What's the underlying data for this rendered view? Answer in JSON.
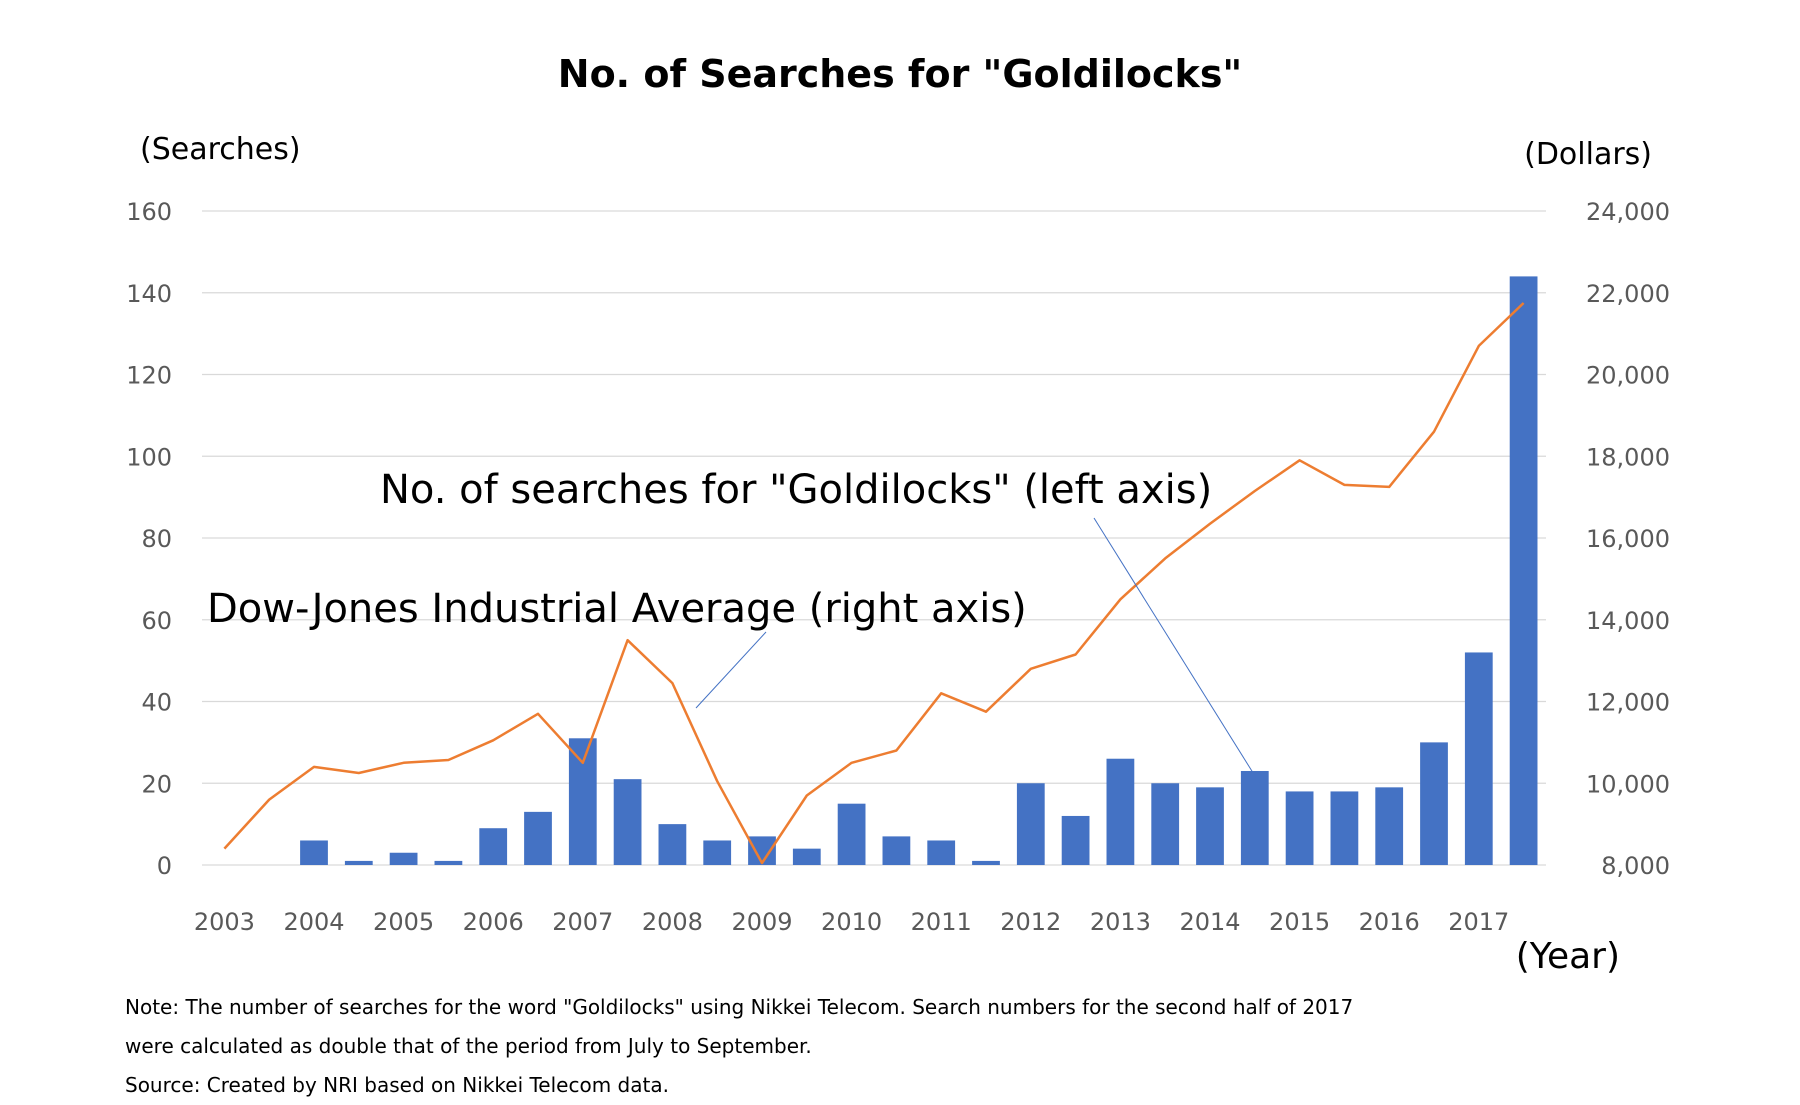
{
  "title": "No. of Searches for \"Goldilocks\"",
  "left_axis_unit": "(Searches)",
  "right_axis_unit": "(Dollars)",
  "x_axis_unit": "(Year)",
  "annotations": {
    "searches": "No. of searches for \"Goldilocks\" (left axis)",
    "djia": "Dow-Jones Industrial Average (right axis)"
  },
  "notes": [
    "Note: The number of searches for the word \"Goldilocks\" using Nikkei Telecom. Search numbers for the second half of 2017",
    "were calculated as double that of the period from July to September.",
    "Source: Created by NRI based on Nikkei Telecom data."
  ],
  "colors": {
    "bars": "#4472c4",
    "line": "#ed7d31",
    "grid": "#d9d9d9",
    "leader": "#4472c4"
  },
  "chart_data": {
    "type": "bar+line",
    "title": "No. of Searches for \"Goldilocks\"",
    "xlabel": "(Year)",
    "ylabel": "(Searches)",
    "y2label": "(Dollars)",
    "ylim": [
      0,
      160
    ],
    "y2lim": [
      8000,
      24000
    ],
    "yticks": [
      "0",
      "20",
      "40",
      "60",
      "80",
      "100",
      "120",
      "140",
      "160"
    ],
    "y2ticks": [
      "8,000",
      "10,000",
      "12,000",
      "14,000",
      "16,000",
      "18,000",
      "20,000",
      "22,000",
      "24,000"
    ],
    "year_labels": [
      "2003",
      "2004",
      "2005",
      "2006",
      "2007",
      "2008",
      "2009",
      "2010",
      "2011",
      "2012",
      "2013",
      "2014",
      "2015",
      "2016",
      "2017"
    ],
    "categories": [
      "2003H1",
      "2003H2",
      "2004H1",
      "2004H2",
      "2005H1",
      "2005H2",
      "2006H1",
      "2006H2",
      "2007H1",
      "2007H2",
      "2008H1",
      "2008H2",
      "2009H1",
      "2009H2",
      "2010H1",
      "2010H2",
      "2011H1",
      "2011H2",
      "2012H1",
      "2012H2",
      "2013H1",
      "2013H2",
      "2014H1",
      "2014H2",
      "2015H1",
      "2015H2",
      "2016H1",
      "2016H2",
      "2017H1",
      "2017H2"
    ],
    "grid": true,
    "series": [
      {
        "name": "No. of searches for \"Goldilocks\" (left axis)",
        "type": "bar",
        "axis": "left",
        "values": [
          0,
          0,
          6,
          1,
          3,
          1,
          9,
          13,
          31,
          21,
          10,
          6,
          7,
          4,
          15,
          7,
          6,
          1,
          20,
          12,
          26,
          20,
          19,
          23,
          18,
          18,
          19,
          30,
          52,
          144
        ]
      },
      {
        "name": "Dow-Jones Industrial Average (right axis)",
        "type": "line",
        "axis": "right",
        "values": [
          8400,
          9600,
          10400,
          10250,
          10500,
          10570,
          11050,
          11700,
          10500,
          13500,
          12450,
          10050,
          8050,
          9700,
          10500,
          10800,
          12200,
          11750,
          12800,
          13150,
          14500,
          15500,
          16350,
          17150,
          17900,
          17300,
          17250,
          18600,
          20700,
          21750
        ]
      }
    ]
  }
}
